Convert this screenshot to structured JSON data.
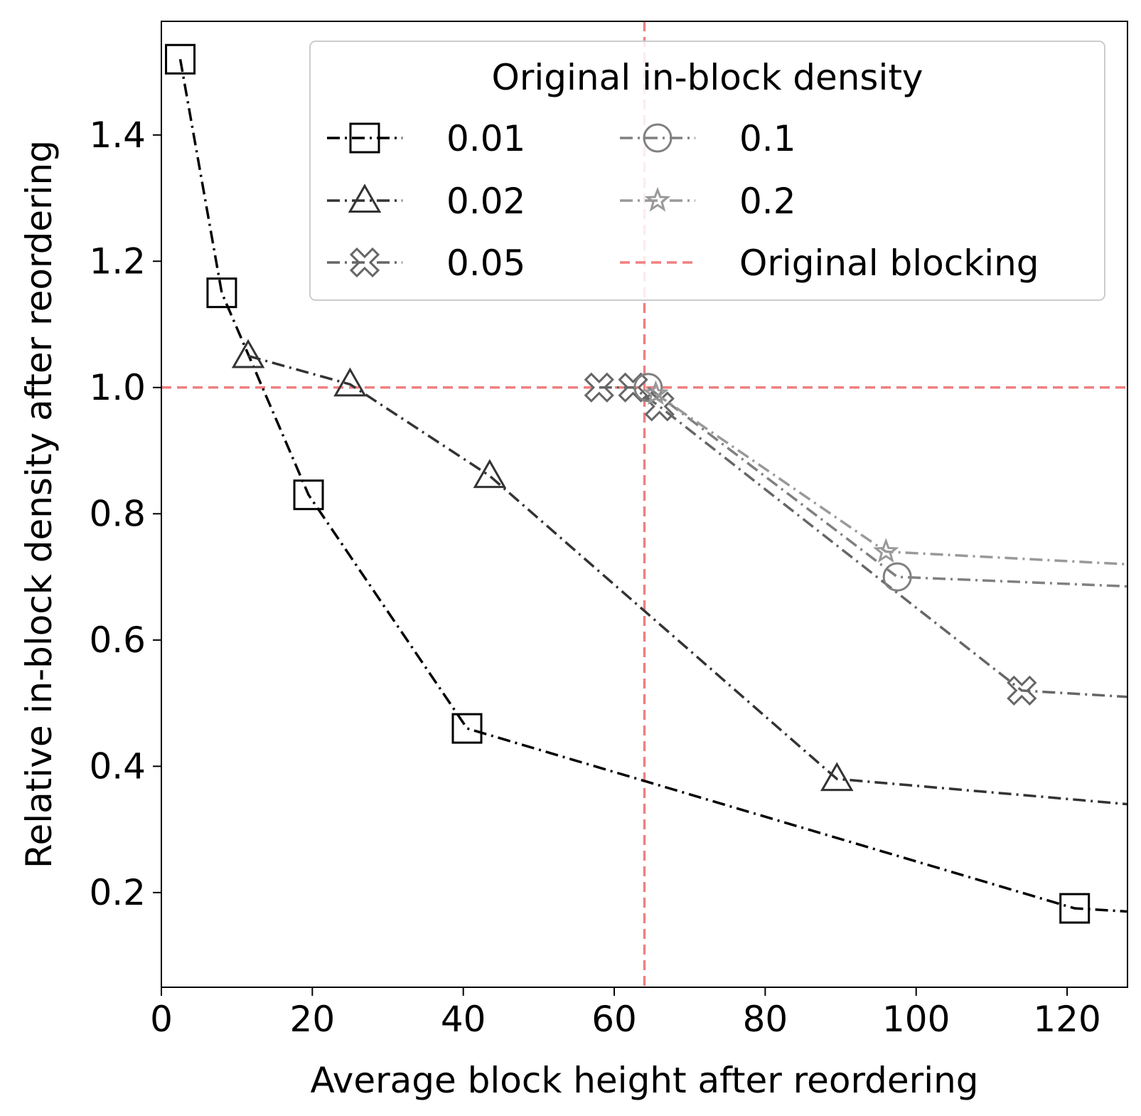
{
  "chart_data": {
    "type": "line",
    "xlabel": "Average block height after reordering",
    "ylabel": "Relative in-block density after reordering",
    "xlim": [
      0,
      128
    ],
    "ylim": [
      0.05,
      1.58
    ],
    "xticks": [
      0,
      20,
      40,
      60,
      80,
      100,
      120
    ],
    "yticks": [
      0.2,
      0.4,
      0.6,
      0.8,
      1.0,
      1.2,
      1.4
    ],
    "xtick_labels": [
      "0",
      "20",
      "40",
      "60",
      "80",
      "100",
      "120"
    ],
    "ytick_labels": [
      "0.2",
      "0.4",
      "0.6",
      "0.8",
      "1.0",
      "1.2",
      "1.4"
    ],
    "grid": false,
    "legend": {
      "title": "Original in-block density",
      "placement": "top-right",
      "ncol": 2
    },
    "series": [
      {
        "name": "0.01",
        "color": "#000000",
        "marker": "square",
        "x": [
          2.5,
          8,
          19.5,
          40.5,
          121,
          128
        ],
        "y": [
          1.52,
          1.15,
          0.83,
          0.46,
          0.175,
          0.17
        ]
      },
      {
        "name": "0.02",
        "color": "#333333",
        "marker": "triangle",
        "x": [
          11.5,
          25,
          43.5,
          89.5,
          128
        ],
        "y": [
          1.05,
          1.005,
          0.86,
          0.38,
          0.34
        ]
      },
      {
        "name": "0.05",
        "color": "#666666",
        "marker": "x-cross",
        "x": [
          58,
          62.5,
          66,
          114,
          128
        ],
        "y": [
          1.0,
          1.0,
          0.97,
          0.52,
          0.51
        ]
      },
      {
        "name": "0.1",
        "color": "#808080",
        "marker": "circle",
        "x": [
          64.5,
          97.5,
          128
        ],
        "y": [
          1.0,
          0.7,
          0.685
        ]
      },
      {
        "name": "0.2",
        "color": "#999999",
        "marker": "star",
        "x": [
          65.5,
          96,
          128
        ],
        "y": [
          0.99,
          0.74,
          0.72
        ]
      }
    ],
    "reference_lines": {
      "name": "Original blocking",
      "color": "#f08080",
      "x": 64,
      "y": 1.0
    }
  }
}
